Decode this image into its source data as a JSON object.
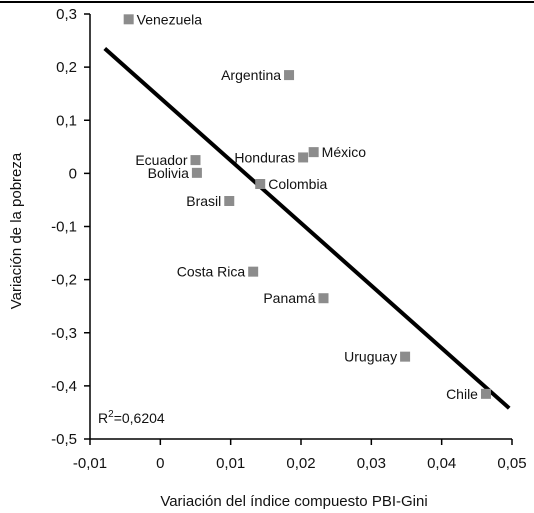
{
  "chart_data": {
    "type": "scatter",
    "xlabel": "Variación del índice compuesto PBI-Gini",
    "ylabel": "Variación de la pobreza",
    "xlim": [
      -0.01,
      0.05
    ],
    "ylim": [
      -0.5,
      0.3
    ],
    "x_ticks": [
      "-0,01",
      "0",
      "0,01",
      "0,02",
      "0,03",
      "0,04",
      "0,05"
    ],
    "y_ticks": [
      "0,3",
      "0,2",
      "0,1",
      "0",
      "-0,1",
      "-0,2",
      "-0,3",
      "-0,4",
      "-0,5"
    ],
    "points": [
      {
        "label": "Venezuela",
        "x": -0.0045,
        "y": 0.29
      },
      {
        "label": "Argentina",
        "x": 0.0183,
        "y": 0.185
      },
      {
        "label": "Ecuador",
        "x": 0.005,
        "y": 0.025
      },
      {
        "label": "Bolivia",
        "x": 0.0052,
        "y": 0.001
      },
      {
        "label": "Honduras",
        "x": 0.0203,
        "y": 0.03
      },
      {
        "label": "México",
        "x": 0.0218,
        "y": 0.04
      },
      {
        "label": "Colombia",
        "x": 0.0142,
        "y": -0.02
      },
      {
        "label": "Brasil",
        "x": 0.0098,
        "y": -0.052
      },
      {
        "label": "Costa Rica",
        "x": 0.0132,
        "y": -0.185
      },
      {
        "label": "Panamá",
        "x": 0.0232,
        "y": -0.235
      },
      {
        "label": "Uruguay",
        "x": 0.0348,
        "y": -0.345
      },
      {
        "label": "Chile",
        "x": 0.0463,
        "y": -0.415
      }
    ],
    "trendline": {
      "x": [
        -0.0079,
        0.0496
      ],
      "y": [
        0.235,
        -0.442
      ]
    },
    "annotation": "R²=0,6204",
    "marker_color": "#8c8c8c",
    "line_color": "#000000"
  }
}
